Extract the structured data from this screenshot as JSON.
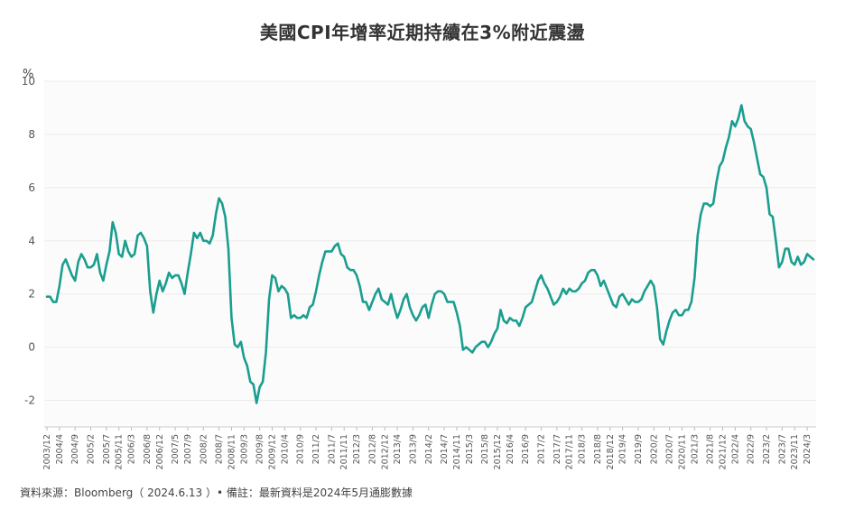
{
  "chart_data": {
    "type": "line",
    "title": "美國CPI年增率近期持續在3%附近震盪",
    "ylabel": "%",
    "xlabel": "",
    "ylim": [
      -3,
      10
    ],
    "yticks": [
      -2,
      0,
      2,
      4,
      6,
      8,
      10
    ],
    "grid": true,
    "legend": "none",
    "line_color": "#1a9e8f",
    "start_month": "2003/12",
    "x_ticks": [
      "2003/12",
      "2004/4",
      "2004/9",
      "2005/2",
      "2005/7",
      "2005/11",
      "2006/3",
      "2006/8",
      "2006/12",
      "2007/5",
      "2007/9",
      "2008/2",
      "2008/7",
      "2008/11",
      "2009/3",
      "2009/8",
      "2009/12",
      "2010/4",
      "2010/9",
      "2011/2",
      "2011/7",
      "2011/11",
      "2012/3",
      "2012/8",
      "2012/12",
      "2013/4",
      "2013/9",
      "2014/2",
      "2014/7",
      "2014/11",
      "2015/3",
      "2015/8",
      "2015/12",
      "2016/4",
      "2016/9",
      "2017/2",
      "2017/7",
      "2017/11",
      "2018/3",
      "2018/8",
      "2018/12",
      "2019/4",
      "2019/9",
      "2020/2",
      "2020/7",
      "2020/11",
      "2021/3",
      "2021/8",
      "2021/12",
      "2022/4",
      "2022/9",
      "2023/2",
      "2023/7",
      "2023/11",
      "2024/3"
    ],
    "series": [
      {
        "values": [
          1.9,
          1.9,
          1.7,
          1.7,
          2.3,
          3.1,
          3.3,
          3.0,
          2.7,
          2.5,
          3.2,
          3.5,
          3.3,
          3.0,
          3.0,
          3.1,
          3.5,
          2.8,
          2.5,
          3.1,
          3.6,
          4.7,
          4.3,
          3.5,
          3.4,
          4.0,
          3.6,
          3.4,
          3.5,
          4.2,
          4.3,
          4.1,
          3.8,
          2.1,
          1.3,
          2.0,
          2.5,
          2.1,
          2.4,
          2.8,
          2.6,
          2.7,
          2.7,
          2.4,
          2.0,
          2.8,
          3.5,
          4.3,
          4.1,
          4.3,
          4.0,
          4.0,
          3.9,
          4.2,
          5.0,
          5.6,
          5.4,
          4.9,
          3.7,
          1.1,
          0.1,
          0.0,
          0.2,
          -0.4,
          -0.7,
          -1.3,
          -1.4,
          -2.1,
          -1.5,
          -1.3,
          -0.2,
          1.8,
          2.7,
          2.6,
          2.1,
          2.3,
          2.2,
          2.0,
          1.1,
          1.2,
          1.1,
          1.1,
          1.2,
          1.1,
          1.5,
          1.6,
          2.1,
          2.7,
          3.2,
          3.6,
          3.6,
          3.6,
          3.8,
          3.9,
          3.5,
          3.4,
          3.0,
          2.9,
          2.9,
          2.7,
          2.3,
          1.7,
          1.7,
          1.4,
          1.7,
          2.0,
          2.2,
          1.8,
          1.7,
          1.6,
          2.0,
          1.5,
          1.1,
          1.4,
          1.8,
          2.0,
          1.5,
          1.2,
          1.0,
          1.2,
          1.5,
          1.6,
          1.1,
          1.6,
          2.0,
          2.1,
          2.1,
          2.0,
          1.7,
          1.7,
          1.7,
          1.3,
          0.8,
          -0.1,
          0.0,
          -0.1,
          -0.2,
          0.0,
          0.1,
          0.2,
          0.2,
          0.0,
          0.2,
          0.5,
          0.7,
          1.4,
          1.0,
          0.9,
          1.1,
          1.0,
          1.0,
          0.8,
          1.1,
          1.5,
          1.6,
          1.7,
          2.1,
          2.5,
          2.7,
          2.4,
          2.2,
          1.9,
          1.6,
          1.7,
          1.9,
          2.2,
          2.0,
          2.2,
          2.1,
          2.1,
          2.2,
          2.4,
          2.5,
          2.8,
          2.9,
          2.9,
          2.7,
          2.3,
          2.5,
          2.2,
          1.9,
          1.6,
          1.5,
          1.9,
          2.0,
          1.8,
          1.6,
          1.8,
          1.7,
          1.7,
          1.8,
          2.1,
          2.3,
          2.5,
          2.3,
          1.5,
          0.3,
          0.1,
          0.6,
          1.0,
          1.3,
          1.4,
          1.2,
          1.2,
          1.4,
          1.4,
          1.7,
          2.6,
          4.2,
          5.0,
          5.4,
          5.4,
          5.3,
          5.4,
          6.2,
          6.8,
          7.0,
          7.5,
          7.9,
          8.5,
          8.3,
          8.6,
          9.1,
          8.5,
          8.3,
          8.2,
          7.7,
          7.1,
          6.5,
          6.4,
          6.0,
          5.0,
          4.9,
          4.0,
          3.0,
          3.2,
          3.7,
          3.7,
          3.2,
          3.1,
          3.4,
          3.1,
          3.2,
          3.5,
          3.4,
          3.3
        ]
      }
    ]
  },
  "footnote": "資料來源：Bloomberg（ 2024.6.13 ）• 備註：最新資料是2024年5月通膨數據"
}
